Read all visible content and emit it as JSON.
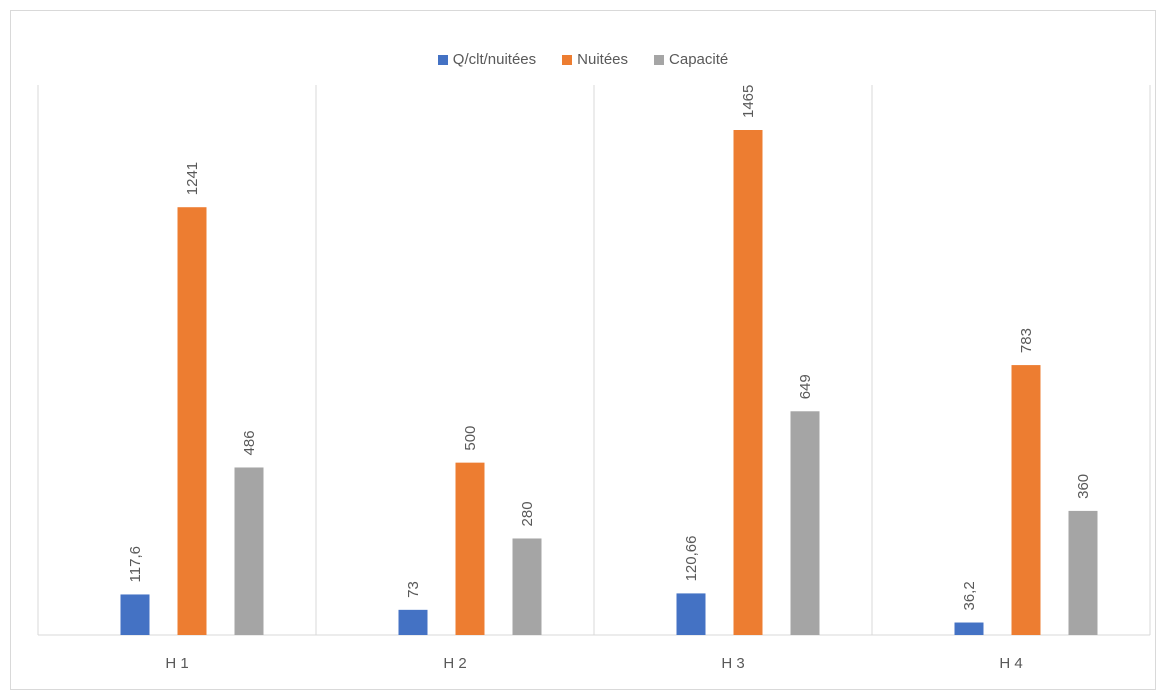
{
  "chart_data": {
    "type": "bar",
    "categories": [
      "H 1",
      "H 2",
      "H 3",
      "H 4"
    ],
    "series": [
      {
        "name": "Q/clt/nuitées",
        "color": "#4472C4",
        "values": [
          117.6,
          73,
          120.66,
          36.2
        ],
        "labels": [
          "117,6",
          "73",
          "120,66",
          "36,2"
        ]
      },
      {
        "name": "Nuitées",
        "color": "#ED7D31",
        "values": [
          1241,
          500,
          1465,
          783
        ],
        "labels": [
          "1241",
          "500",
          "1465",
          "783"
        ]
      },
      {
        "name": "Capacité",
        "color": "#A5A5A5",
        "values": [
          486,
          280,
          649,
          360
        ],
        "labels": [
          "486",
          "280",
          "649",
          "360"
        ]
      }
    ],
    "title": "",
    "xlabel": "",
    "ylabel": "",
    "ylim": [
      0,
      1465
    ],
    "grid": false,
    "legend_position": "top"
  }
}
